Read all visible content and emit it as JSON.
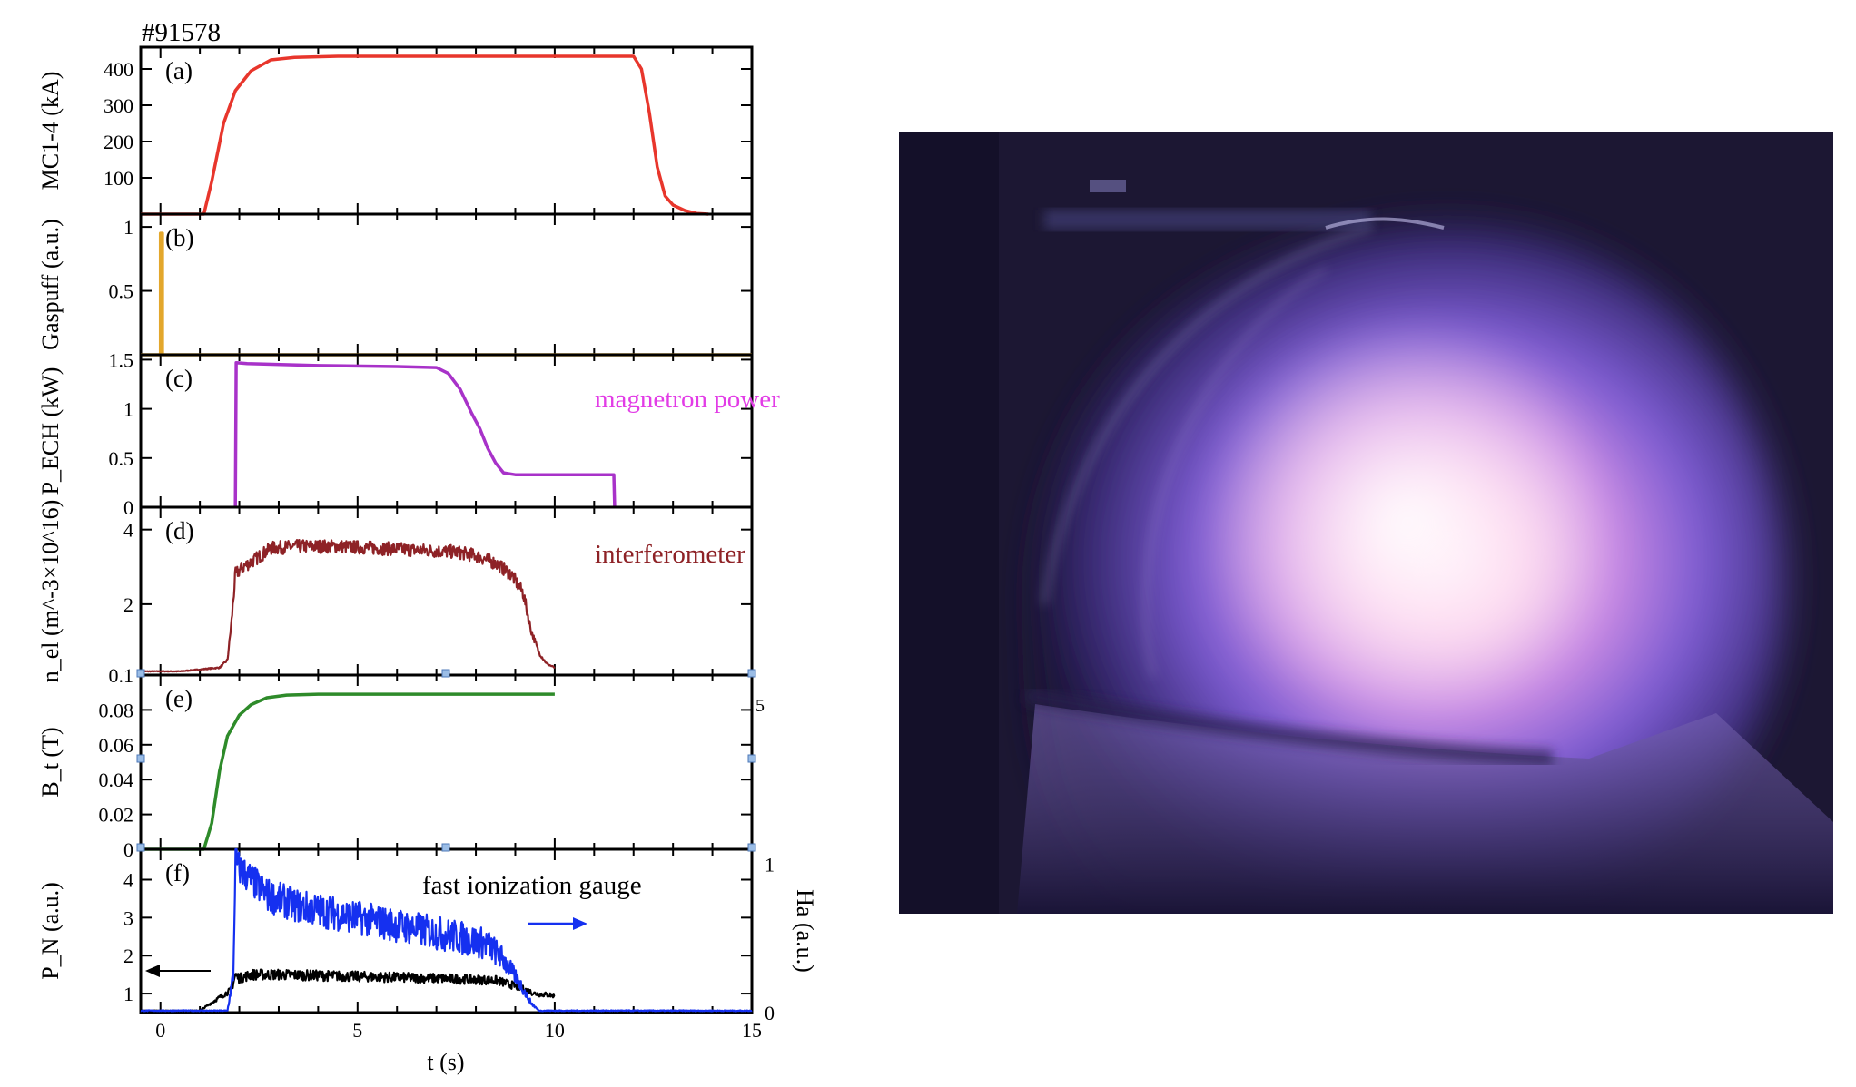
{
  "shot_label": "#91578",
  "xaxis": {
    "label": "t (s)",
    "ticks": [
      0,
      5,
      10,
      15
    ],
    "range": [
      -0.5,
      15
    ]
  },
  "colors": {
    "current": "#e8362c",
    "gaspuff": "#e3a72c",
    "magnetron": "#a832c9",
    "magnetron_text": "#e23ce6",
    "density": "#8e2226",
    "field": "#2e8b2a",
    "gauge": "#1530f0",
    "halpha": "#000000",
    "frame": "#000000"
  },
  "chart_data": [
    {
      "type": "line",
      "panel": "(a)",
      "ylabel": "MC1-4 (kA)",
      "ylim": [
        0,
        460
      ],
      "yticks": [
        100,
        200,
        300,
        400
      ],
      "series": [
        {
          "color_key": "current",
          "x": [
            -0.5,
            1.1,
            1.3,
            1.6,
            1.9,
            2.3,
            2.8,
            3.4,
            4.5,
            7,
            10,
            12.0,
            12.2,
            12.4,
            12.6,
            12.8,
            13.0,
            13.3,
            13.6,
            13.9
          ],
          "y": [
            0,
            0,
            90,
            250,
            340,
            395,
            425,
            432,
            435,
            435,
            435,
            435,
            400,
            280,
            130,
            50,
            25,
            10,
            2,
            0
          ]
        }
      ]
    },
    {
      "type": "line",
      "panel": "(b)",
      "ylabel": "Gaspuff (a.u.)",
      "ylim": [
        0,
        1.1
      ],
      "yticks": [
        0.5,
        1
      ],
      "series": [
        {
          "color_key": "gaspuff",
          "x": [
            -0.5,
            -0.02,
            0.0,
            0.0,
            0.05,
            0.05,
            0.2,
            15
          ],
          "y": [
            0,
            0,
            0,
            0.95,
            0.95,
            0,
            0,
            0
          ]
        }
      ]
    },
    {
      "type": "line",
      "panel": "(c)",
      "ylabel": "P_ECH (kW)",
      "ylim": [
        0,
        1.55
      ],
      "yticks": [
        0,
        0.5,
        1,
        1.5
      ],
      "annotation": "magnetron power",
      "series": [
        {
          "color_key": "magnetron",
          "x": [
            1.9,
            1.92,
            2.2,
            4,
            6,
            7.0,
            7.3,
            7.6,
            7.9,
            8.1,
            8.3,
            8.5,
            8.7,
            9.0,
            10,
            11.0,
            11.5,
            11.52
          ],
          "y": [
            0,
            1.47,
            1.46,
            1.44,
            1.43,
            1.42,
            1.36,
            1.2,
            0.95,
            0.8,
            0.6,
            0.45,
            0.35,
            0.33,
            0.33,
            0.33,
            0.33,
            0
          ]
        }
      ]
    },
    {
      "type": "line",
      "panel": "(d)",
      "ylabel": "n_el (m^-3×10^16)",
      "ylim": [
        0.1,
        4.6
      ],
      "yticks": [
        0.1,
        2,
        4
      ],
      "annotation": "interferometer",
      "series": [
        {
          "color_key": "density",
          "noise": 0.18,
          "x": [
            -0.5,
            0.5,
            1.0,
            1.5,
            1.7,
            1.8,
            1.9,
            2.1,
            2.4,
            2.8,
            3.5,
            4.5,
            5.5,
            6.5,
            7.5,
            8.0,
            8.5,
            8.9,
            9.2,
            9.4,
            9.6,
            9.8,
            10.0
          ],
          "y": [
            0.2,
            0.2,
            0.25,
            0.3,
            0.5,
            1.5,
            2.8,
            3.0,
            3.2,
            3.5,
            3.55,
            3.55,
            3.5,
            3.45,
            3.4,
            3.3,
            3.1,
            2.8,
            2.3,
            1.3,
            0.7,
            0.4,
            0.3
          ]
        }
      ]
    },
    {
      "type": "line",
      "panel": "(e)",
      "ylabel": "B_t (T)",
      "ylim": [
        0,
        0.1
      ],
      "yticks": [
        0,
        0.02,
        0.04,
        0.06,
        0.08
      ],
      "right_tick": "5",
      "series": [
        {
          "color_key": "field",
          "x": [
            -0.5,
            1.1,
            1.3,
            1.5,
            1.7,
            2.0,
            2.3,
            2.7,
            3.2,
            4,
            6,
            8,
            10
          ],
          "y": [
            0,
            0,
            0.015,
            0.045,
            0.065,
            0.077,
            0.083,
            0.087,
            0.0885,
            0.089,
            0.089,
            0.089,
            0.089
          ]
        }
      ]
    },
    {
      "type": "line",
      "panel": "(f)",
      "ylabel": "P_N (a.u.)",
      "ylim": [
        0.5,
        4.8
      ],
      "yticks": [
        1,
        2,
        3,
        4
      ],
      "right_ylabel": "Ha (a.u.)",
      "right_ylim": [
        0,
        1.1
      ],
      "right_yticks": [
        0,
        1
      ],
      "annotation": "fast ionization gauge",
      "series": [
        {
          "color_key": "halpha",
          "noise": 0.28,
          "x": [
            -0.5,
            1.0,
            1.5,
            1.8,
            1.9,
            2.0,
            2.3,
            3,
            5,
            7,
            8.5,
            9,
            9.5,
            10
          ],
          "y": [
            0.55,
            0.55,
            0.9,
            1.1,
            1.5,
            1.4,
            1.5,
            1.5,
            1.45,
            1.4,
            1.35,
            1.2,
            1.0,
            0.95
          ]
        },
        {
          "color_key": "gauge",
          "noise": 0.45,
          "x": [
            -0.5,
            1.7,
            1.85,
            1.9,
            2.0,
            2.3,
            2.7,
            3.5,
            5,
            6.5,
            7.5,
            8.3,
            8.7,
            9.1,
            9.4,
            9.6,
            15
          ],
          "y": [
            0.55,
            0.55,
            1.5,
            4.5,
            4.3,
            4.0,
            3.6,
            3.3,
            3.0,
            2.7,
            2.5,
            2.3,
            1.9,
            1.3,
            0.75,
            0.55,
            0.55
          ]
        }
      ]
    }
  ]
}
